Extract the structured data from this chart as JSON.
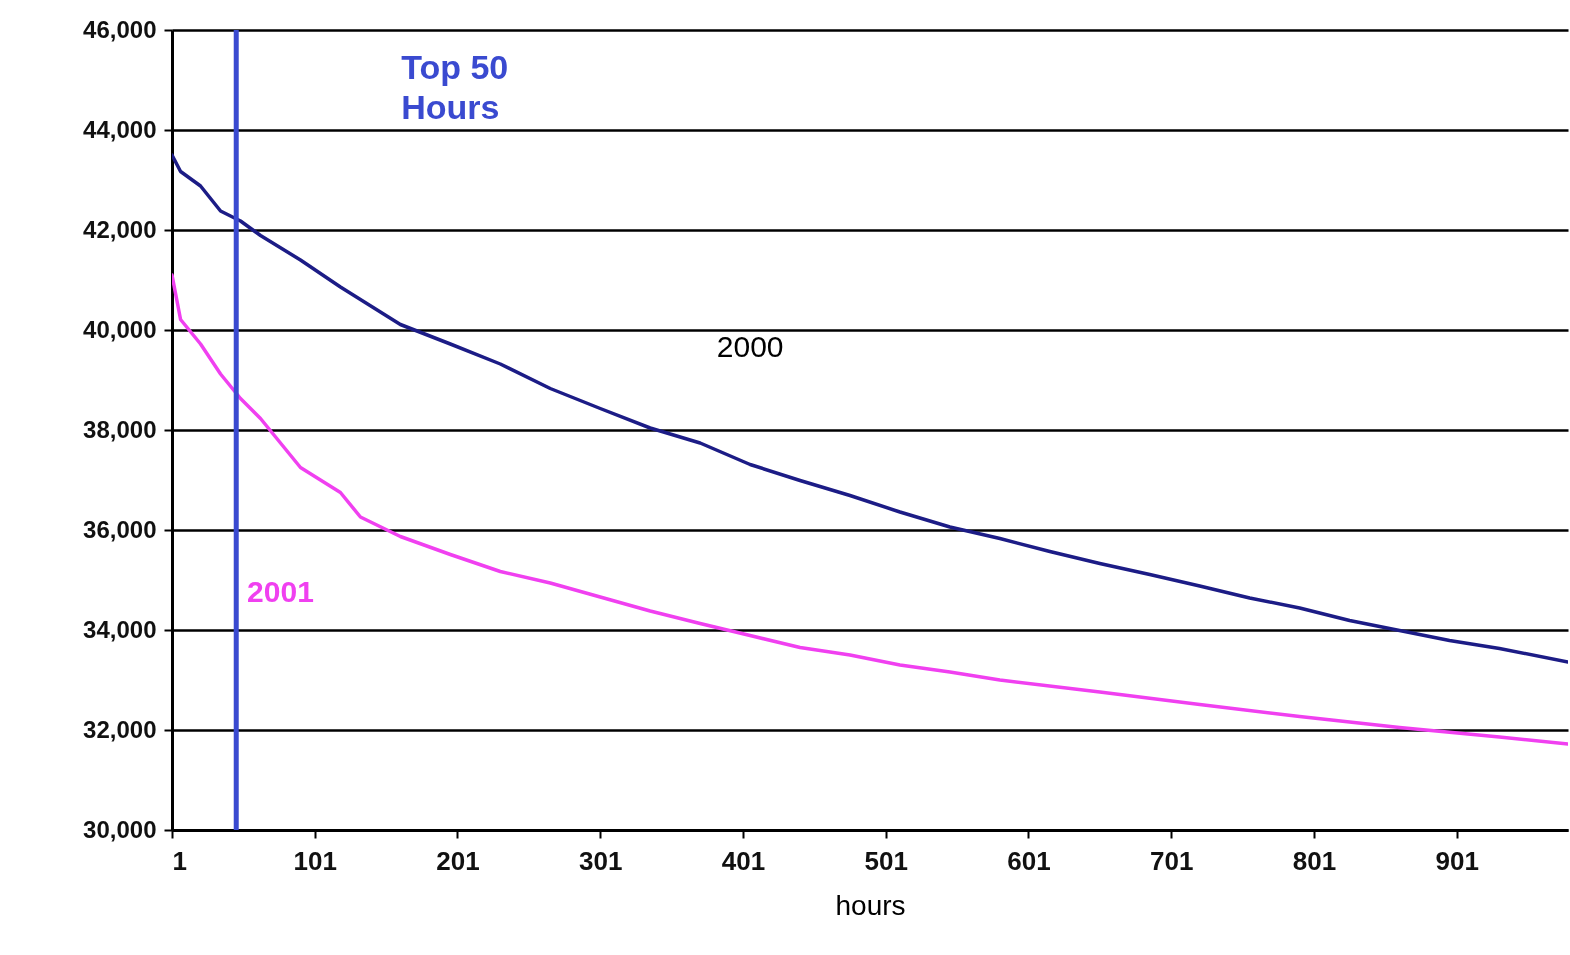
{
  "chart_data": {
    "type": "line",
    "xlabel": "hours",
    "xlim": [
      1,
      979
    ],
    "ylim": [
      30000,
      46000
    ],
    "xticks": [
      1,
      101,
      201,
      301,
      401,
      501,
      601,
      701,
      801,
      901
    ],
    "yticks": [
      {
        "value": 30000,
        "label": "30,000"
      },
      {
        "value": 32000,
        "label": "32,000"
      },
      {
        "value": 34000,
        "label": "34,000"
      },
      {
        "value": 36000,
        "label": "36,000"
      },
      {
        "value": 38000,
        "label": "38,000"
      },
      {
        "value": 40000,
        "label": "40,000"
      },
      {
        "value": 42000,
        "label": "42,000"
      },
      {
        "value": 44000,
        "label": "44,000"
      },
      {
        "value": 46000,
        "label": "46,000"
      }
    ],
    "grid": "y",
    "line_style": "solid",
    "marker": "none",
    "series": [
      {
        "name": "2000",
        "color": "#1c1c86",
        "x": [
          1,
          7,
          21,
          35,
          49,
          63,
          91,
          119,
          161,
          196,
          231,
          266,
          301,
          336,
          371,
          406,
          441,
          476,
          511,
          546,
          581,
          616,
          651,
          686,
          721,
          756,
          791,
          826,
          861,
          896,
          931,
          979
        ],
        "values": [
          43500,
          43170,
          42880,
          42380,
          42180,
          41890,
          41400,
          40860,
          40110,
          39720,
          39320,
          38830,
          38430,
          38040,
          37740,
          37310,
          36990,
          36690,
          36360,
          36060,
          35830,
          35570,
          35330,
          35110,
          34880,
          34640,
          34440,
          34190,
          33990,
          33790,
          33630,
          33360
        ]
      },
      {
        "name": "2001",
        "color": "#f040f0",
        "x": [
          1,
          7,
          21,
          35,
          49,
          63,
          77,
          91,
          119,
          133,
          161,
          196,
          231,
          266,
          301,
          336,
          371,
          406,
          441,
          476,
          511,
          546,
          581,
          651,
          721,
          791,
          861,
          931,
          979
        ],
        "values": [
          41100,
          40210,
          39720,
          39120,
          38630,
          38230,
          37740,
          37250,
          36750,
          36260,
          35870,
          35510,
          35170,
          34940,
          34660,
          34380,
          34130,
          33890,
          33650,
          33500,
          33300,
          33160,
          33000,
          32760,
          32510,
          32270,
          32050,
          31860,
          31720
        ]
      }
    ],
    "ref_lines": [
      {
        "axis": "x",
        "value": 46,
        "label": "Top 50 Hours",
        "color": "#3a4ad0"
      }
    ]
  }
}
